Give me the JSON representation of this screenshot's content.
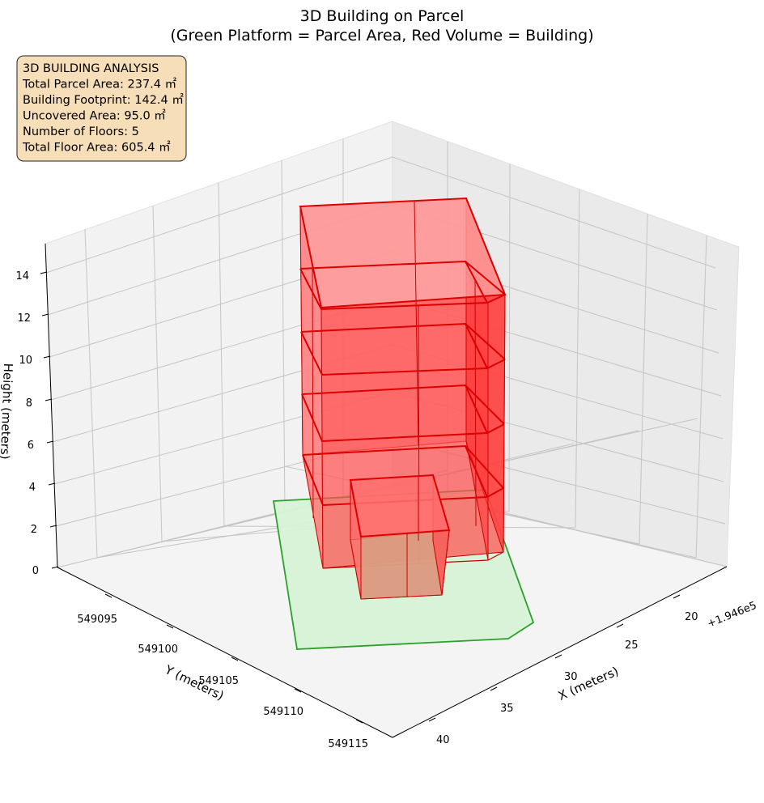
{
  "chart_data": {
    "type": "3d-bar",
    "title": "3D Building on Parcel",
    "subtitle": "(Green Platform = Parcel Area, Red Volume = Building)",
    "xlabel": "X (meters)",
    "ylabel": "Y (meters)",
    "zlabel": "Height (meters)",
    "x_offset_label": "+1.946e5",
    "x_ticks": [
      "20",
      "25",
      "30",
      "35",
      "40"
    ],
    "y_ticks": [
      "549095",
      "549100",
      "549105",
      "549110",
      "549115"
    ],
    "z_ticks": [
      "0",
      "2",
      "4",
      "6",
      "8",
      "10",
      "12",
      "14"
    ],
    "zlim": [
      0,
      15
    ],
    "grid": true,
    "info_box": {
      "lines": [
        "3D BUILDING ANALYSIS",
        "Total Parcel Area: 237.4 ㎡",
        "Building Footprint: 142.4 ㎡",
        "Uncovered Area: 95.0 ㎡",
        "Number of Floors: 5",
        "Total Floor Area: 605.4 ㎡"
      ],
      "position": "top-left"
    },
    "parcel": {
      "color": "#2ca02c",
      "fill": "#d6f2d6"
    },
    "building": {
      "floors": 5,
      "floor_height": 3,
      "height": 15,
      "color": "#e00000",
      "fill": "#ff5555"
    }
  }
}
